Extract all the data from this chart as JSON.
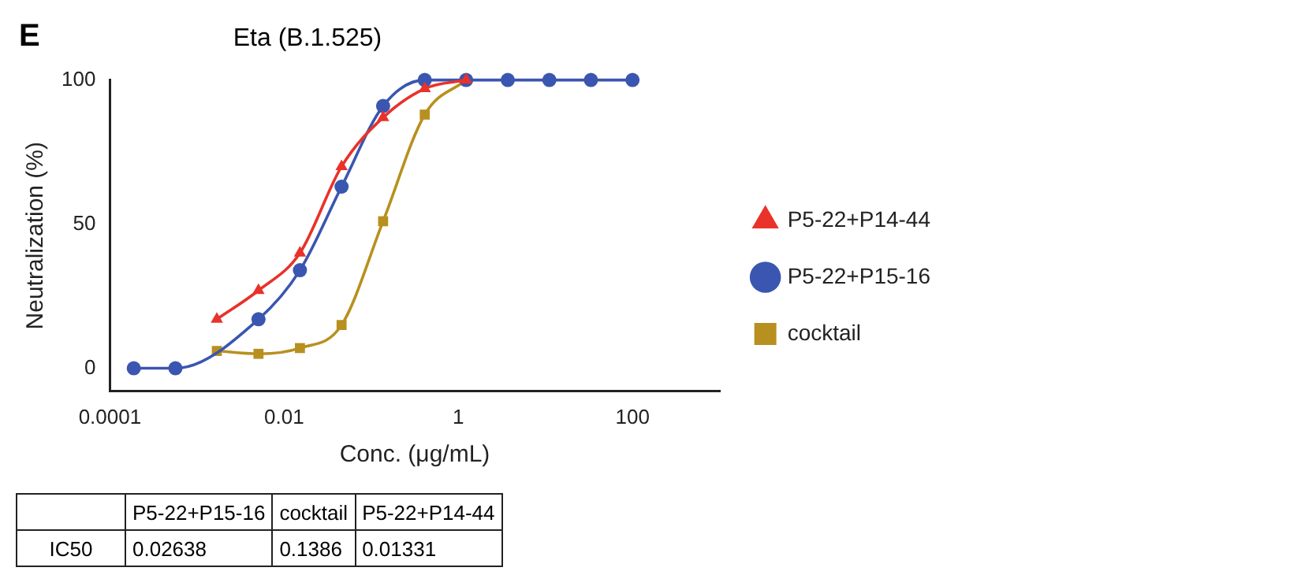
{
  "chart_data": {
    "type": "line",
    "title": "Eta (B.1.525)",
    "xlabel": "Conc. (μg/mL)",
    "ylabel": "Neutralization (%)",
    "x": [
      0.000188,
      0.000565,
      0.00169,
      0.00508,
      0.0152,
      0.0457,
      0.137,
      0.412,
      1.23,
      3.7,
      11.1,
      33.3,
      100
    ],
    "series": [
      {
        "name": "P5-22+P14-44",
        "color": "#e8322a",
        "marker": "triangle",
        "values": [
          null,
          null,
          17,
          27,
          40,
          70,
          87,
          97,
          100,
          null,
          null,
          null,
          null
        ]
      },
      {
        "name": "P5-22+P15-16",
        "color": "#3a56b0",
        "marker": "circle",
        "values": [
          0,
          0,
          null,
          17,
          34,
          63,
          91,
          100,
          100,
          100,
          100,
          100,
          100
        ]
      },
      {
        "name": "cocktail",
        "color": "#b8901f",
        "marker": "square",
        "values": [
          null,
          null,
          6,
          5,
          7,
          15,
          51,
          88,
          100,
          null,
          null,
          null,
          null
        ]
      }
    ],
    "log": "x",
    "xlim": [
      0.0001,
      1000
    ],
    "xticks": [
      0.0001,
      0.01,
      1,
      100
    ],
    "ylim": [
      -8,
      100
    ],
    "yticks": [
      0,
      50,
      100
    ],
    "grid": false,
    "legend": "right",
    "line_style": "solid",
    "annotations": [
      "E",
      "P5-22+P15-16",
      "cocktail",
      "P5-22+P14-44",
      "IC50",
      "0.02638",
      "0.1386",
      "0.01331"
    ]
  }
}
